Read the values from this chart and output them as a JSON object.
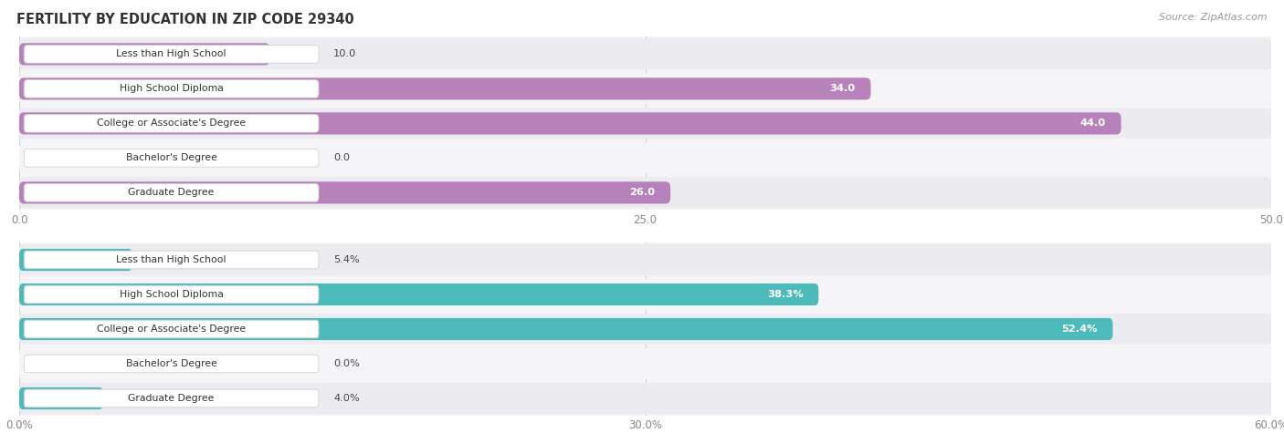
{
  "title": "FERTILITY BY EDUCATION IN ZIP CODE 29340",
  "source": "Source: ZipAtlas.com",
  "top_chart": {
    "categories": [
      "Less than High School",
      "High School Diploma",
      "College or Associate's Degree",
      "Bachelor's Degree",
      "Graduate Degree"
    ],
    "values": [
      10.0,
      34.0,
      44.0,
      0.0,
      26.0
    ],
    "bar_color": "#b57db8",
    "bar_color_light": "#cba3d0",
    "xlim": [
      0,
      50
    ],
    "xticks": [
      0.0,
      25.0,
      50.0
    ],
    "xtick_labels": [
      "0.0",
      "25.0",
      "50.0"
    ],
    "value_labels": [
      "10.0",
      "34.0",
      "44.0",
      "0.0",
      "26.0"
    ],
    "inside_threshold": 17.0
  },
  "bottom_chart": {
    "categories": [
      "Less than High School",
      "High School Diploma",
      "College or Associate's Degree",
      "Bachelor's Degree",
      "Graduate Degree"
    ],
    "values": [
      5.4,
      38.3,
      52.4,
      0.0,
      4.0
    ],
    "bar_color": "#45b8b8",
    "bar_color_light": "#75cccc",
    "xlim": [
      0,
      60
    ],
    "xticks": [
      0.0,
      30.0,
      60.0
    ],
    "xtick_labels": [
      "0.0%",
      "30.0%",
      "60.0%"
    ],
    "value_labels": [
      "5.4%",
      "38.3%",
      "52.4%",
      "0.0%",
      "4.0%"
    ],
    "inside_threshold": 20.0
  },
  "row_bg_color": "#ebebf0",
  "row_bg_color_alt": "#f5f5f8",
  "label_box_color": "#ffffff",
  "title_color": "#333333",
  "source_color": "#999999",
  "tick_color": "#888888",
  "grid_color": "#cccccc",
  "value_color_inside": "#ffffff",
  "value_color_outside": "#555555"
}
